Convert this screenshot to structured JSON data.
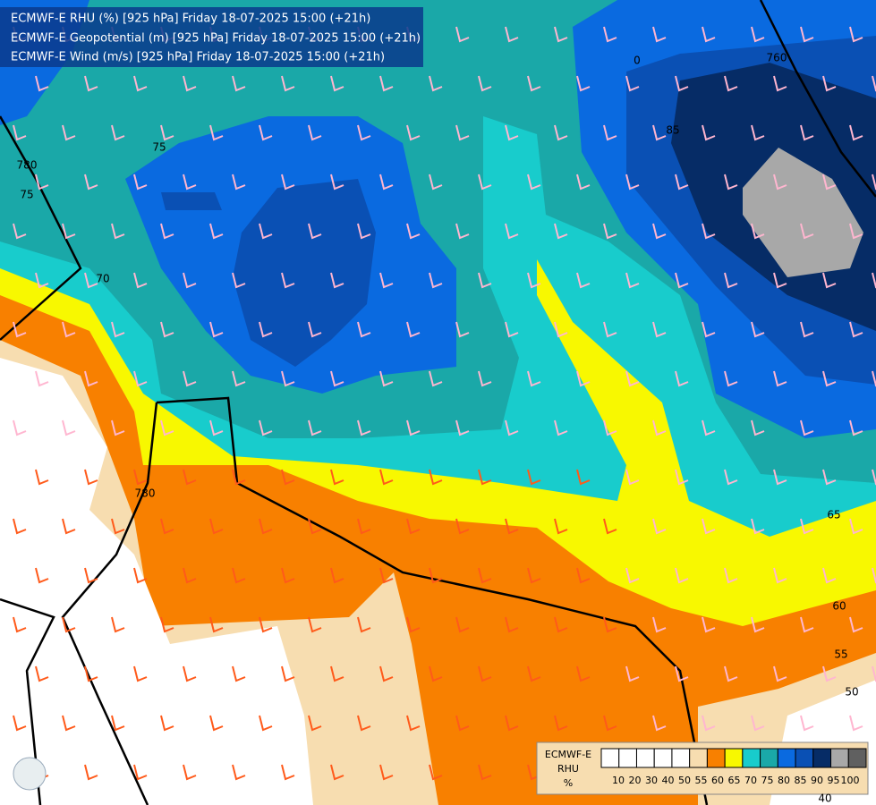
{
  "header": {
    "lines": [
      "ECMWF-E RHU (%) [925 hPa] Friday 18-07-2025 15:00 (+21h)",
      "ECMWF-E Geopotential (m) [925 hPa] Friday 18-07-2025 15:00 (+21h)",
      "ECMWF-E Wind (m/s) [925 hPa] Friday 18-07-2025 15:00 (+21h)"
    ]
  },
  "contour_labels": [
    "780",
    "780",
    "760",
    "75",
    "75",
    "70",
    "65",
    "60",
    "55",
    "50",
    "85",
    "0",
    "40"
  ],
  "legend": {
    "title": [
      "ECMWF-E",
      "RHU",
      "%"
    ],
    "colors": [
      "#ffffff",
      "#ffffff",
      "#ffffff",
      "#ffffff",
      "#ffffff",
      "#f7ddb0",
      "#f88000",
      "#f8f800",
      "#18cccc",
      "#1aa8a8",
      "#0a6ae0",
      "#0a50b4",
      "#062c66",
      "#a8a8a8",
      "#606060"
    ],
    "labels": [
      "10",
      "20",
      "30",
      "40",
      "50",
      "55",
      "60",
      "65",
      "70",
      "75",
      "80",
      "85",
      "90",
      "95",
      "100"
    ]
  }
}
